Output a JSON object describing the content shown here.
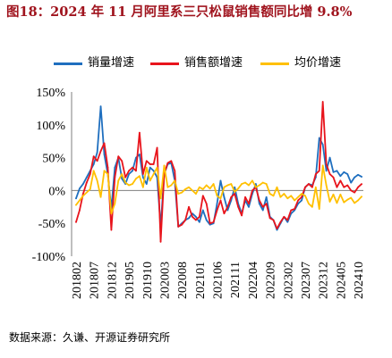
{
  "chart_data": {
    "type": "line",
    "title": "图18：2024 年 11 月阿里系三只松鼠销售额同比增 9.8%",
    "xlabel": "",
    "ylabel": "",
    "ylim": [
      -100,
      150
    ],
    "yticks": [
      -100,
      -50,
      0,
      50,
      100,
      150
    ],
    "ytick_labels": [
      "-100%",
      "-50%",
      "0%",
      "50%",
      "100%",
      "150%"
    ],
    "xtick_labels": [
      "201802",
      "201807",
      "201812",
      "201905",
      "201910",
      "202003",
      "202008",
      "202101",
      "202106",
      "202111",
      "202204",
      "202209",
      "202302",
      "202307",
      "202312",
      "202405",
      "202410"
    ],
    "x": [
      201802,
      201803,
      201804,
      201805,
      201806,
      201807,
      201808,
      201809,
      201810,
      201811,
      201812,
      201901,
      201902,
      201903,
      201904,
      201905,
      201906,
      201907,
      201908,
      201909,
      201910,
      201911,
      201912,
      202001,
      202002,
      202003,
      202004,
      202005,
      202006,
      202007,
      202008,
      202009,
      202010,
      202011,
      202012,
      202101,
      202102,
      202103,
      202104,
      202105,
      202106,
      202107,
      202108,
      202109,
      202110,
      202111,
      202112,
      202201,
      202202,
      202203,
      202204,
      202205,
      202206,
      202207,
      202208,
      202209,
      202210,
      202211,
      202212,
      202301,
      202302,
      202303,
      202304,
      202305,
      202306,
      202307,
      202308,
      202309,
      202310,
      202311,
      202312,
      202401,
      202402,
      202403,
      202404,
      202405,
      202406,
      202407,
      202408,
      202409,
      202410,
      202411
    ],
    "legend": "top",
    "grid": false,
    "series": [
      {
        "name": "销量增速",
        "color": "#1F6FBF",
        "values": [
          -12,
          3,
          10,
          20,
          30,
          40,
          58,
          128,
          55,
          25,
          -28,
          35,
          50,
          18,
          10,
          25,
          30,
          50,
          55,
          20,
          10,
          35,
          30,
          20,
          -55,
          25,
          40,
          42,
          15,
          -55,
          -50,
          -45,
          -42,
          -35,
          -40,
          -48,
          -30,
          -45,
          -52,
          -50,
          -20,
          15,
          -10,
          -30,
          -15,
          5,
          -20,
          -35,
          -15,
          -25,
          -5,
          10,
          -20,
          -30,
          -10,
          -40,
          -45,
          -60,
          -50,
          -40,
          -48,
          -35,
          -30,
          -20,
          -15,
          5,
          10,
          8,
          20,
          80,
          70,
          30,
          50,
          28,
          30,
          22,
          28,
          25,
          12,
          20,
          24,
          21
        ]
      },
      {
        "name": "销售额增速",
        "color": "#E8141C",
        "values": [
          -48,
          -30,
          -5,
          12,
          25,
          52,
          45,
          60,
          72,
          35,
          -60,
          20,
          52,
          45,
          20,
          30,
          35,
          30,
          88,
          25,
          45,
          40,
          40,
          65,
          -78,
          25,
          42,
          45,
          30,
          -55,
          -52,
          -45,
          -25,
          -40,
          -45,
          -40,
          -8,
          -20,
          -50,
          -48,
          -30,
          -15,
          -35,
          -25,
          -10,
          -5,
          -25,
          -38,
          -10,
          -20,
          0,
          5,
          -15,
          -25,
          -20,
          -42,
          -45,
          -58,
          -48,
          -40,
          -45,
          -30,
          -28,
          -15,
          -10,
          5,
          10,
          5,
          25,
          30,
          135,
          40,
          25,
          20,
          5,
          15,
          5,
          8,
          0,
          -3,
          5,
          9.8
        ]
      },
      {
        "name": "均价增速",
        "color": "#FFC000",
        "values": [
          -22,
          -15,
          -8,
          -3,
          2,
          30,
          15,
          -10,
          30,
          25,
          -35,
          -20,
          15,
          25,
          12,
          8,
          10,
          18,
          22,
          5,
          35,
          15,
          25,
          35,
          -12,
          38,
          5,
          8,
          15,
          -5,
          -3,
          2,
          5,
          0,
          -5,
          5,
          2,
          8,
          3,
          10,
          -8,
          -12,
          5,
          8,
          10,
          -2,
          3,
          10,
          12,
          8,
          15,
          5,
          8,
          12,
          10,
          -5,
          -8,
          5,
          -10,
          -5,
          -12,
          -8,
          -15,
          -10,
          -5,
          -8,
          -20,
          -25,
          5,
          -28,
          38,
          8,
          -17,
          -6,
          -19,
          -6,
          -18,
          -14,
          -11,
          -19,
          -15,
          -9.3
        ]
      }
    ]
  },
  "footer": {
    "source": "数据来源：久谦、开源证券研究所"
  },
  "colors": {
    "title": "#A0141E",
    "axis": "#7F7F7F"
  }
}
